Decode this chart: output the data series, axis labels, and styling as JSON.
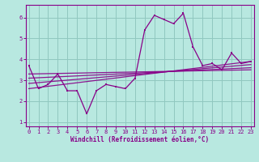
{
  "x": [
    0,
    1,
    2,
    3,
    4,
    5,
    6,
    7,
    8,
    9,
    10,
    11,
    12,
    13,
    14,
    15,
    16,
    17,
    18,
    19,
    20,
    21,
    22,
    23
  ],
  "y_main": [
    3.7,
    2.6,
    2.8,
    3.3,
    2.5,
    2.5,
    1.4,
    2.5,
    2.8,
    2.7,
    2.6,
    3.1,
    5.4,
    6.1,
    5.9,
    5.7,
    6.2,
    4.6,
    3.7,
    3.8,
    3.5,
    4.3,
    3.8,
    3.9
  ],
  "reg_lines": [
    [
      2.6,
      3.9
    ],
    [
      2.85,
      3.75
    ],
    [
      3.1,
      3.6
    ],
    [
      3.3,
      3.5
    ]
  ],
  "line_color": "#880088",
  "bg_color": "#b8e8e0",
  "grid_color": "#90c8c0",
  "tick_color": "#880088",
  "xlabel": "Windchill (Refroidissement éolien,°C)",
  "ylim": [
    0.8,
    6.6
  ],
  "xlim": [
    -0.3,
    23.3
  ],
  "yticks": [
    1,
    2,
    3,
    4,
    5,
    6
  ],
  "xticks": [
    0,
    1,
    2,
    3,
    4,
    5,
    6,
    7,
    8,
    9,
    10,
    11,
    12,
    13,
    14,
    15,
    16,
    17,
    18,
    19,
    20,
    21,
    22,
    23
  ],
  "figsize": [
    3.2,
    2.0
  ],
  "dpi": 100
}
